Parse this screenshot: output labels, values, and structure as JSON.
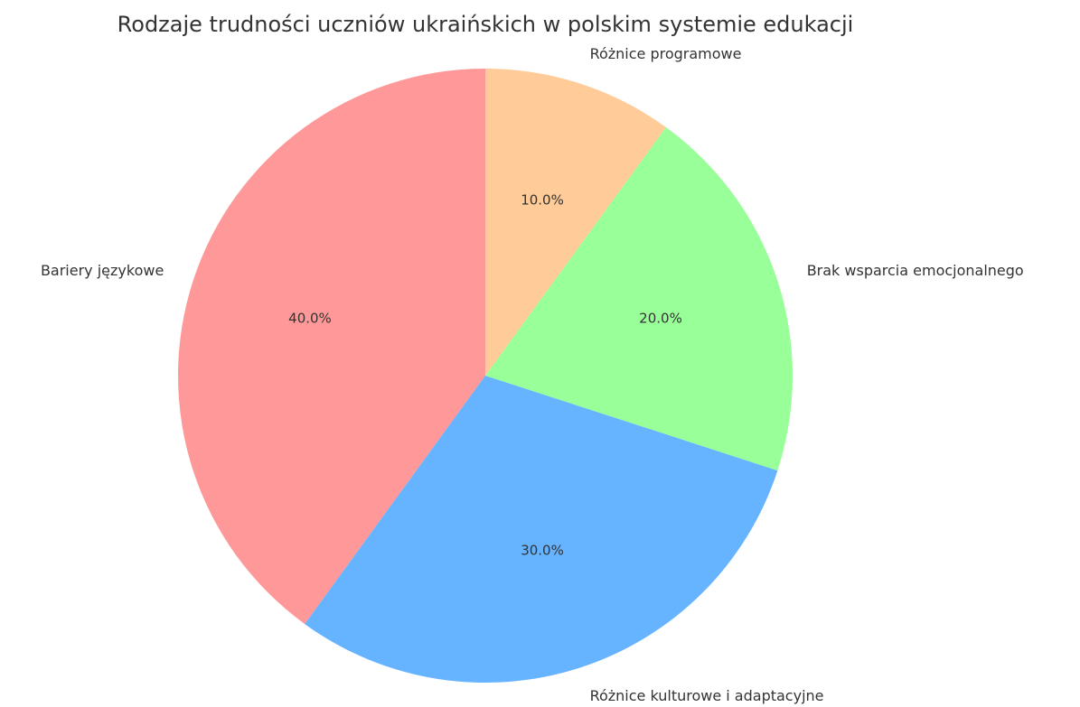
{
  "chart_data": {
    "type": "pie",
    "title": "Rodzaje trudności uczniów ukraińskich w polskim systemie edukacji",
    "categories": [
      "Bariery językowe",
      "Różnice kulturowe i adaptacyjne",
      "Brak wsparcia emocjonalnego",
      "Różnice programowe"
    ],
    "values": [
      40,
      30,
      20,
      10
    ],
    "value_labels": [
      "40.0%",
      "30.0%",
      "20.0%",
      "10.0%"
    ],
    "colors": [
      "#ff9999",
      "#66b3ff",
      "#99ff99",
      "#ffcc99"
    ]
  }
}
